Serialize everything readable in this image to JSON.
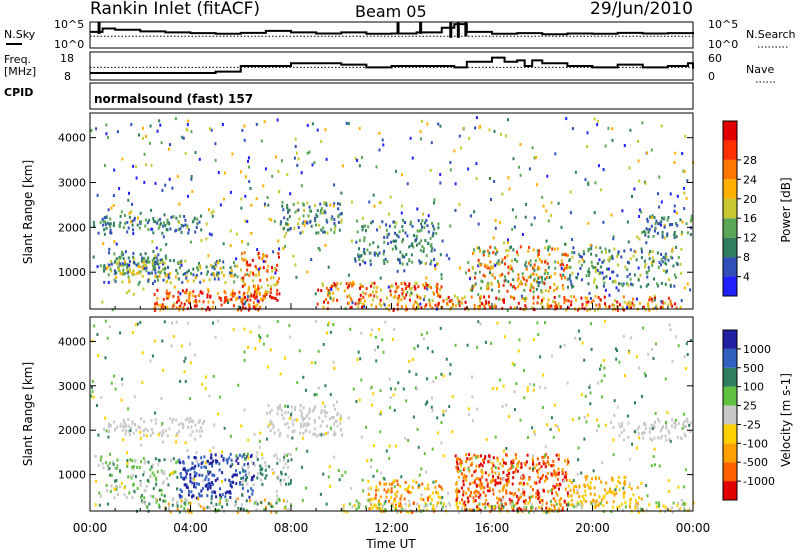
{
  "header": {
    "station": "Rankin Inlet (fitACF)",
    "beam": "Beam 05",
    "date": "29/Jun/2010"
  },
  "left_labels": {
    "nsky": "N.Sky",
    "freq": "Freq.",
    "freq_unit": "[MHz]",
    "cpid": "CPID"
  },
  "right_labels": {
    "nsearch": "N.Search",
    "nave": "Nave"
  },
  "cpid_text": "normalsound (fast) 157",
  "chart_data": [
    {
      "type": "line",
      "panel": "noise",
      "left_ticks": [
        "10^5",
        "10^0"
      ],
      "right_ticks": [
        "10^5",
        "10^0"
      ],
      "series": [
        {
          "name": "N.Sky",
          "x": [
            0,
            0.5,
            1,
            2,
            3,
            4,
            5,
            6,
            7,
            8,
            9,
            10,
            11,
            12,
            13,
            14,
            14.5,
            15,
            16,
            17,
            18,
            19,
            20,
            21,
            22,
            23,
            24
          ],
          "y": [
            0.62,
            0.75,
            0.7,
            0.64,
            0.6,
            0.57,
            0.55,
            0.58,
            0.66,
            0.6,
            0.56,
            0.6,
            0.55,
            0.56,
            0.6,
            0.78,
            0.92,
            0.62,
            0.55,
            0.57,
            0.53,
            0.56,
            0.55,
            0.58,
            0.56,
            0.57,
            0.62
          ]
        },
        {
          "name": "N.Search",
          "x": [
            0,
            24
          ],
          "y": [
            0.45,
            0.45
          ]
        }
      ]
    },
    {
      "type": "line",
      "panel": "frequency",
      "left_ticks": [
        "18",
        "8"
      ],
      "right_ticks": [
        "60",
        "0"
      ],
      "series": [
        {
          "name": "Freq. [MHz]",
          "x": [
            0,
            4,
            5,
            5.9,
            6,
            7.5,
            8,
            9,
            10,
            11,
            12,
            14,
            14.5,
            15,
            16,
            16.5,
            17,
            17.3,
            17.6,
            18,
            19,
            20,
            21,
            22,
            23,
            23.8,
            24
          ],
          "y": [
            10.5,
            10.5,
            11,
            11,
            13,
            13,
            14,
            14,
            13.5,
            12.5,
            13,
            13,
            12.5,
            14.5,
            16,
            14.5,
            15,
            13,
            15,
            14,
            13,
            12.5,
            13.5,
            12.5,
            13,
            14,
            12
          ]
        },
        {
          "name": "Nave",
          "x": [
            0,
            24
          ],
          "y": [
            27,
            27
          ]
        }
      ]
    },
    {
      "type": "heatmap",
      "panel": "power",
      "title": "",
      "xlabel": "",
      "ylabel": "Slant Range [km]",
      "xlim": [
        0,
        24
      ],
      "ylim": [
        180,
        4550
      ],
      "yticks": [
        1000,
        2000,
        3000,
        4000
      ],
      "colorbar": {
        "label": "Power [dB]",
        "ticks": [
          4,
          8,
          12,
          16,
          20,
          24,
          28
        ],
        "colors": [
          "#2020ff",
          "#3050b8",
          "#2f7f5f",
          "#5aa855",
          "#c8c830",
          "#ffb000",
          "#ff7800",
          "#ff3000",
          "#e00000"
        ]
      }
    },
    {
      "type": "heatmap",
      "panel": "velocity",
      "xlabel": "Time UT",
      "ylabel": "Slant Range [km]",
      "xlim": [
        0,
        24
      ],
      "ylim": [
        180,
        4550
      ],
      "yticks": [
        1000,
        2000,
        3000,
        4000
      ],
      "xticks": [
        "00:00",
        "04:00",
        "08:00",
        "12:00",
        "16:00",
        "20:00",
        "00:00"
      ],
      "colorbar": {
        "label": "Velocity [m s-1]",
        "ticks": [
          1000,
          500,
          100,
          25,
          -25,
          -100,
          -500,
          -1000
        ],
        "colors": [
          "#2020a0",
          "#3060c0",
          "#2f7f5f",
          "#60c040",
          "#c8c8c8",
          "#ffd000",
          "#ffa000",
          "#ff6000",
          "#e00000"
        ]
      }
    }
  ]
}
